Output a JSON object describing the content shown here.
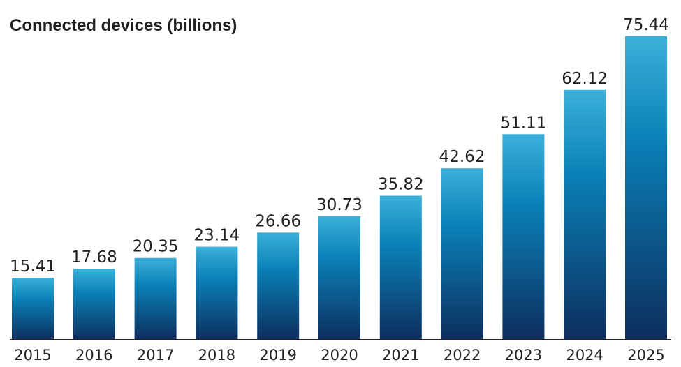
{
  "chart_data": {
    "type": "bar",
    "title": "Connected devices (billions)",
    "categories": [
      "2015",
      "2016",
      "2017",
      "2018",
      "2019",
      "2020",
      "2021",
      "2022",
      "2023",
      "2024",
      "2025"
    ],
    "values": [
      15.41,
      17.68,
      20.35,
      23.14,
      26.66,
      30.73,
      35.82,
      42.62,
      51.11,
      62.12,
      75.44
    ],
    "data_labels": [
      "15.41",
      "17.68",
      "20.35",
      "23.14",
      "26.66",
      "30.73",
      "35.82",
      "42.62",
      "51.11",
      "62.12",
      "75.44"
    ],
    "xlabel": "",
    "ylabel": "",
    "ylim": [
      0,
      80
    ],
    "grid": false,
    "legend": "none",
    "colors": {
      "bar_top": "#3ab0da",
      "bar_mid": "#0a7fb6",
      "bar_bottom": "#0d2e5e",
      "axis": "#231f20",
      "text": "#231f20"
    }
  }
}
